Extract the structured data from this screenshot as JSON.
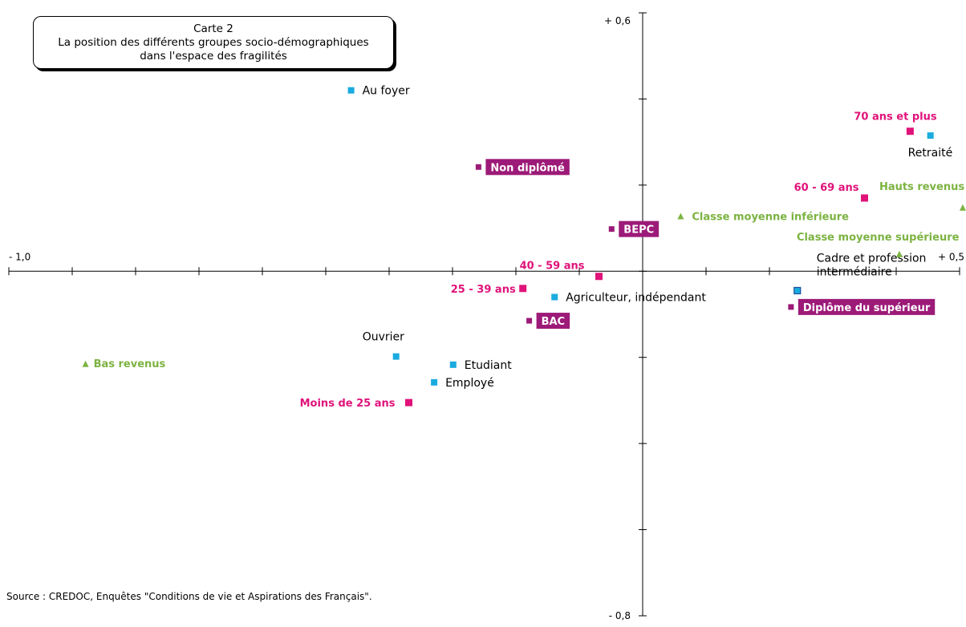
{
  "chart_data": {
    "type": "scatter",
    "title": "Carte 2",
    "subtitle_lines": [
      "La position des différents groupes socio-démographiques",
      "dans l'espace des fragilités"
    ],
    "source": "Source : CREDOC, Enquêtes \"Conditions de vie et Aspirations des Français\".",
    "xlim": [
      -1.0,
      0.5
    ],
    "ylim": [
      -0.8,
      0.6
    ],
    "axis_labels": {
      "x_min": "- 1,0",
      "x_max": "+ 0,5",
      "y_max": "+ 0,6",
      "y_min": "- 0,8"
    },
    "grid": false,
    "colors": {
      "profession": "#1aabdf",
      "profession_border": "#1a4f9f",
      "age": "#e0137a",
      "diplome": "#9c1a78",
      "revenu": "#7cb342",
      "axis": "#000000",
      "text": "#000000"
    },
    "series": [
      {
        "group": "profession",
        "marker": "square",
        "points": [
          {
            "label": "Au foyer",
            "x": -0.46,
            "y": 0.42
          },
          {
            "label": "Retraité",
            "x": 0.454,
            "y": 0.315
          },
          {
            "label": "Cadre et profession intermédiaire",
            "x": 0.244,
            "y": -0.045
          },
          {
            "label": "Agriculteur, indépendant",
            "x": -0.139,
            "y": -0.06
          },
          {
            "label": "Ouvrier",
            "x": -0.389,
            "y": -0.198
          },
          {
            "label": "Etudiant",
            "x": -0.299,
            "y": -0.217
          },
          {
            "label": "Employé",
            "x": -0.329,
            "y": -0.258
          }
        ]
      },
      {
        "group": "age",
        "marker": "square",
        "points": [
          {
            "label": "70 ans et plus",
            "x": 0.422,
            "y": 0.325
          },
          {
            "label": "60 - 69 ans",
            "x": 0.35,
            "y": 0.17
          },
          {
            "label": "40 - 59 ans",
            "x": -0.069,
            "y": -0.012
          },
          {
            "label": "25 - 39 ans",
            "x": -0.189,
            "y": -0.04
          },
          {
            "label": "Moins de 25 ans",
            "x": -0.369,
            "y": -0.305
          }
        ]
      },
      {
        "group": "diplome",
        "marker": "square",
        "points": [
          {
            "label": "Non diplômé",
            "x": -0.259,
            "y": 0.242
          },
          {
            "label": "BEPC",
            "x": -0.049,
            "y": 0.098
          },
          {
            "label": "BAC",
            "x": -0.179,
            "y": -0.115
          },
          {
            "label": "Diplôme du supérieur",
            "x": 0.234,
            "y": -0.083
          }
        ]
      },
      {
        "group": "revenu",
        "marker": "triangle",
        "points": [
          {
            "label": "Hauts revenus",
            "x": 0.505,
            "y": 0.148
          },
          {
            "label": "Classe moyenne inférieure",
            "x": 0.06,
            "y": 0.128
          },
          {
            "label": "Classe moyenne supérieure",
            "x": 0.405,
            "y": 0.04
          },
          {
            "label": "Bas revenus",
            "x": -0.879,
            "y": -0.215
          }
        ]
      }
    ]
  }
}
